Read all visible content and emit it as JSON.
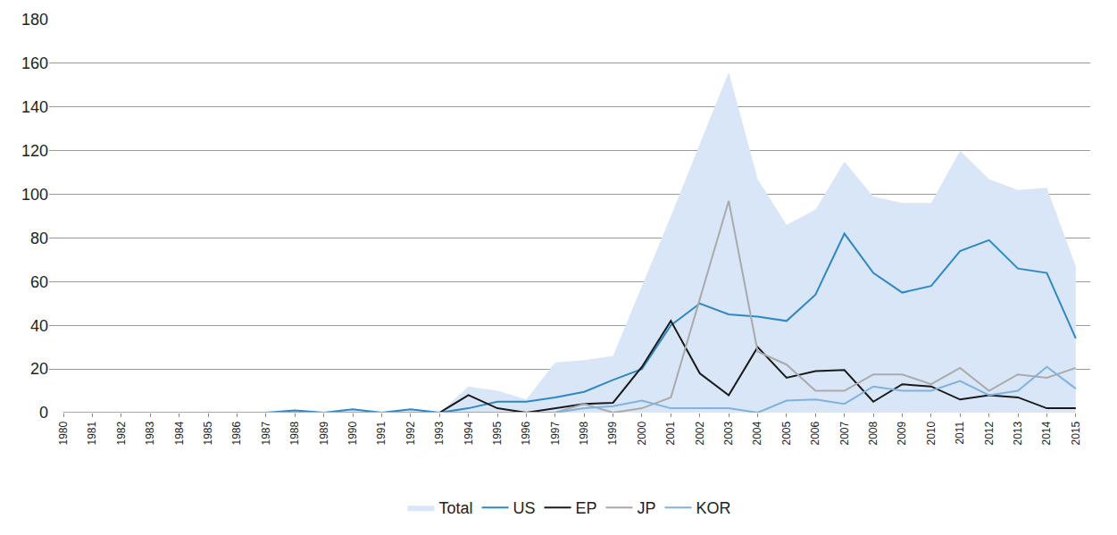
{
  "chart_data": {
    "type": "line",
    "categories": [
      "1980",
      "1981",
      "1982",
      "1983",
      "1984",
      "1985",
      "1986",
      "1987",
      "1988",
      "1989",
      "1990",
      "1991",
      "1992",
      "1993",
      "1994",
      "1995",
      "1996",
      "1997",
      "1998",
      "1999",
      "2000",
      "2001",
      "2002",
      "2003",
      "2004",
      "2005",
      "2006",
      "2007",
      "2008",
      "2009",
      "2010",
      "2011",
      "2012",
      "2013",
      "2014",
      "2015"
    ],
    "series": [
      {
        "name": "Total",
        "type": "area",
        "color": "#d9e6f7",
        "values": [
          0,
          0,
          0,
          0,
          0,
          0.5,
          0,
          0,
          1,
          0,
          1.5,
          0,
          1.5,
          0,
          12,
          10,
          6,
          23,
          24,
          26,
          58,
          90,
          123,
          156,
          107,
          86,
          93,
          115,
          99,
          96,
          96,
          120,
          107,
          102,
          103,
          67
        ]
      },
      {
        "name": "US",
        "type": "line",
        "color": "#2f88c4",
        "values": [
          0,
          0,
          0,
          0,
          0,
          0,
          0,
          0,
          1,
          0,
          1.5,
          0,
          1.5,
          0,
          2,
          5,
          5,
          7,
          9.5,
          15,
          20,
          40,
          50,
          45,
          44,
          42,
          54,
          82,
          64,
          55,
          58,
          74,
          79,
          66,
          64,
          34
        ]
      },
      {
        "name": "EP",
        "type": "line",
        "color": "#1a1a1a",
        "values": [
          0,
          0,
          0,
          0,
          0,
          0,
          0,
          0,
          0,
          0,
          0,
          0,
          0,
          0,
          8,
          2,
          0,
          2,
          4,
          4.5,
          21,
          42,
          18,
          8,
          30,
          16,
          19,
          19.5,
          5,
          13,
          12,
          6,
          8,
          7,
          2,
          2
        ]
      },
      {
        "name": "JP",
        "type": "line",
        "color": "#aaaaaa",
        "values": [
          0,
          0,
          0,
          0,
          0,
          0,
          0,
          0,
          0,
          0,
          0,
          0,
          0,
          0,
          0,
          0,
          0,
          0,
          4,
          0,
          2,
          7,
          52,
          97,
          28,
          22,
          10,
          10,
          17.5,
          17.5,
          13,
          20.5,
          10,
          17.5,
          16,
          20.5
        ]
      },
      {
        "name": "KOR",
        "type": "line",
        "color": "#80b2de",
        "values": [
          0,
          0,
          0,
          0,
          0,
          0,
          0,
          0,
          0,
          0,
          0,
          0,
          0,
          0,
          0,
          0,
          0,
          0,
          2,
          3,
          5.5,
          2,
          2,
          2,
          0,
          5.5,
          6,
          4,
          12,
          10,
          10,
          14.5,
          8,
          10,
          21,
          11
        ]
      }
    ],
    "ylim": [
      0,
      180
    ],
    "yticks": [
      0,
      20,
      40,
      60,
      80,
      100,
      120,
      140,
      160,
      180
    ],
    "grid": true,
    "legend": "bottom"
  }
}
